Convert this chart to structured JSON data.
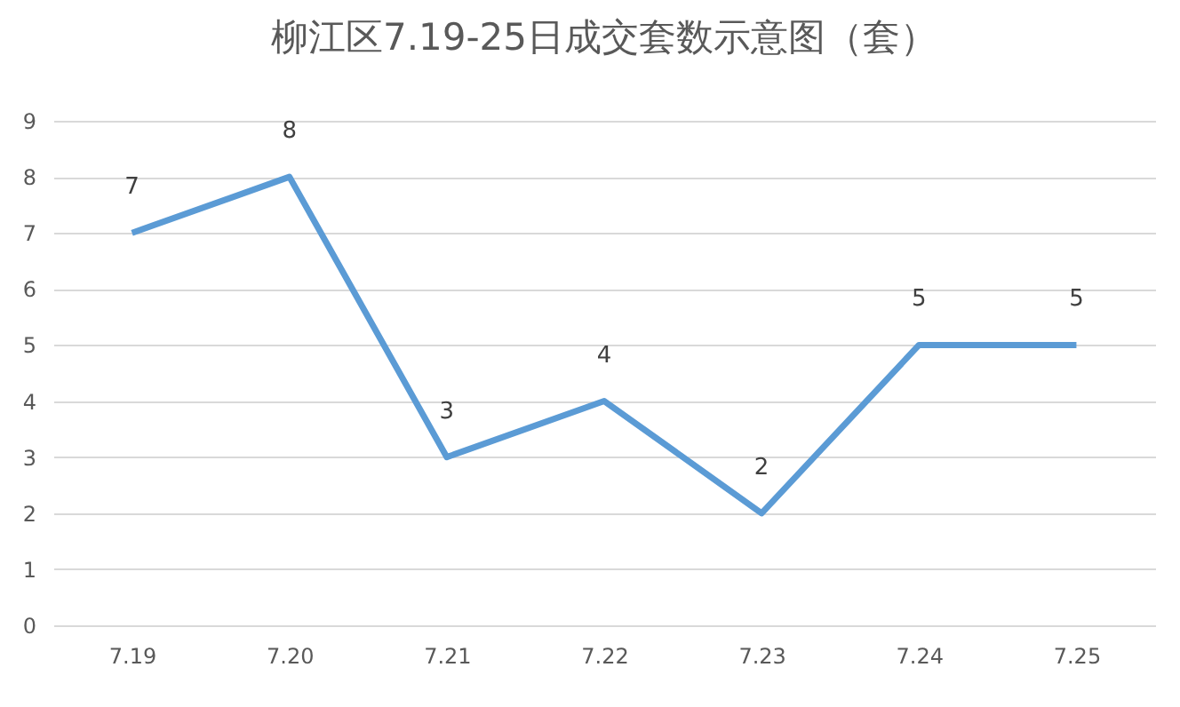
{
  "chart_data": {
    "type": "line",
    "title": "柳江区7.19-25日成交套数示意图（套）",
    "categories": [
      "7.19",
      "7.20",
      "7.21",
      "7.22",
      "7.23",
      "7.24",
      "7.25"
    ],
    "series": [
      {
        "color": "#5b9bd5",
        "values": [
          7,
          8,
          3,
          4,
          2,
          5,
          5
        ]
      }
    ],
    "ylim": [
      0,
      9
    ],
    "yticks": [
      0,
      1,
      2,
      3,
      4,
      5,
      6,
      7,
      8,
      9
    ],
    "grid": "y",
    "data_labels": true,
    "legend": false,
    "marker": "none",
    "line_style": "solid"
  }
}
